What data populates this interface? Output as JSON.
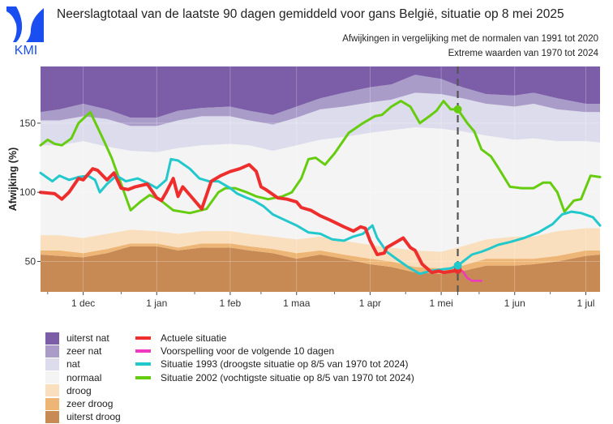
{
  "header": {
    "logo_text": "KMI",
    "title": "Neerslagtotaal van de laatste 90 dagen gemiddeld voor gans België, situatie op 8 mei 2025",
    "subtitle_1": "Afwijkingen in vergelijking met de normalen van 1991 tot 2020",
    "subtitle_2": "Extreme waarden van 1970 tot 2024"
  },
  "colors": {
    "uiterst_nat": "#7c5ea8",
    "zeer_nat": "#aa9cc9",
    "nat": "#dcdcec",
    "normaal": "#f4f4f4",
    "droog": "#f9dfbd",
    "zeer_droog": "#eeb676",
    "uiterst_droog": "#c88a55",
    "actueel": "#ee2d2d",
    "voorspelling": "#ee38c0",
    "s1993": "#22c8cc",
    "s2002": "#66cc0f",
    "today_line": "#555555",
    "logo": "#1a4ef0"
  },
  "chart_data": {
    "type": "area",
    "title": "Neerslagtotaal van de laatste 90 dagen gemiddeld voor gans België, situatie op 8 mei 2025",
    "xlabel": "",
    "ylabel": "Afwijking (%)",
    "ylim": [
      28,
      191
    ],
    "yticks": [
      50,
      100,
      150
    ],
    "x_unit": "days relative to 1 dec 2024",
    "xlim": [
      -18,
      218
    ],
    "xticks": [
      {
        "label": "1 dec",
        "day": 0
      },
      {
        "label": "1 jan",
        "day": 31
      },
      {
        "label": "1 feb",
        "day": 62
      },
      {
        "label": "1 maa",
        "day": 90
      },
      {
        "label": "1 apr",
        "day": 121
      },
      {
        "label": "1 mei",
        "day": 151
      },
      {
        "label": "1 jun",
        "day": 182
      },
      {
        "label": "1 jul",
        "day": 212
      }
    ],
    "today": {
      "label": "8 mei",
      "day": 158
    },
    "grid": true,
    "band_days": [
      -18,
      -10,
      0,
      10,
      20,
      31,
      40,
      50,
      62,
      70,
      80,
      90,
      100,
      110,
      121,
      130,
      140,
      151,
      160,
      170,
      182,
      190,
      200,
      212,
      218
    ],
    "bands": [
      {
        "name": "uiterst droog",
        "upper": [
          55,
          54,
          53,
          56,
          61,
          61,
          58,
          60,
          60,
          58,
          56,
          52,
          55,
          52,
          48,
          46,
          42,
          41,
          43,
          47,
          47,
          48,
          50,
          54,
          55
        ]
      },
      {
        "name": "zeer droog",
        "upper": [
          58,
          58,
          56,
          59,
          63,
          63,
          60,
          63,
          63,
          61,
          59,
          56,
          58,
          55,
          52,
          50,
          46,
          45,
          47,
          52,
          52,
          52,
          54,
          58,
          58
        ]
      },
      {
        "name": "droog",
        "upper": [
          69,
          69,
          67,
          70,
          73,
          72,
          70,
          72,
          72,
          70,
          68,
          66,
          68,
          65,
          62,
          60,
          58,
          57,
          61,
          66,
          68,
          68,
          72,
          74,
          74
        ]
      },
      {
        "name": "normaal",
        "upper": [
          134,
          134,
          137,
          133,
          130,
          129,
          132,
          134,
          135,
          134,
          130,
          134,
          138,
          140,
          143,
          145,
          147,
          146,
          144,
          141,
          138,
          139,
          137,
          137,
          136
        ]
      },
      {
        "name": "nat",
        "upper": [
          152,
          152,
          155,
          153,
          148,
          148,
          152,
          155,
          155,
          152,
          149,
          154,
          160,
          162,
          165,
          167,
          172,
          171,
          168,
          164,
          162,
          164,
          160,
          158,
          158
        ]
      },
      {
        "name": "zeer nat",
        "upper": [
          158,
          160,
          164,
          160,
          154,
          154,
          159,
          161,
          162,
          159,
          156,
          162,
          168,
          172,
          176,
          178,
          185,
          182,
          176,
          171,
          170,
          172,
          168,
          164,
          164
        ]
      },
      {
        "name": "uiterst nat",
        "upper": [
          191,
          191,
          191,
          191,
          191,
          191,
          191,
          191,
          191,
          191,
          191,
          191,
          191,
          191,
          191,
          191,
          191,
          191,
          191,
          191,
          191,
          191,
          191,
          191,
          191
        ]
      }
    ],
    "series": [
      {
        "name": "Actuele situatie",
        "x": [
          -18,
          -12,
          -9,
          -6,
          -2,
          0,
          4,
          6,
          10,
          13,
          16,
          19,
          22,
          27,
          31,
          33,
          35,
          38,
          40,
          42,
          46,
          50,
          54,
          58,
          62,
          66,
          70,
          73,
          75,
          77,
          82,
          86,
          90,
          92,
          96,
          100,
          104,
          110,
          114,
          117,
          119,
          121,
          124,
          127,
          128,
          132,
          135,
          138,
          140,
          143,
          145,
          147,
          150,
          152,
          156,
          158
        ],
        "values": [
          100,
          99,
          95,
          100,
          110,
          109,
          117,
          116,
          109,
          114,
          103,
          102,
          104,
          106,
          96,
          94,
          100,
          110,
          97,
          104,
          96,
          88,
          108,
          112,
          115,
          117,
          120,
          115,
          104,
          102,
          96,
          95,
          93,
          89,
          87,
          83,
          80,
          75,
          72,
          75,
          74,
          65,
          55,
          56,
          60,
          64,
          67,
          60,
          58,
          48,
          45,
          42,
          43,
          42,
          43,
          44
        ]
      },
      {
        "name": "Voorspelling voor de volgende 10 dagen",
        "x": [
          158,
          160,
          162,
          164,
          166,
          168
        ],
        "values": [
          44,
          43,
          38,
          36,
          36,
          36
        ]
      },
      {
        "name": "Situatie 1993 (droogste situatie op 8/5 van 1970 tot 2024)",
        "x": [
          -18,
          -13,
          -10,
          -6,
          -2,
          2,
          5,
          7,
          10,
          14,
          18,
          23,
          28,
          31,
          35,
          37,
          40,
          45,
          49,
          53,
          57,
          62,
          65,
          69,
          72,
          76,
          80,
          85,
          90,
          95,
          100,
          105,
          110,
          114,
          118,
          122,
          124,
          128,
          132,
          137,
          142,
          146,
          150,
          155,
          158,
          161,
          164,
          168,
          171,
          175,
          180,
          186,
          192,
          198,
          202,
          206,
          210,
          215,
          218
        ],
        "values": [
          114,
          108,
          112,
          109,
          111,
          112,
          109,
          100,
          106,
          112,
          108,
          110,
          106,
          103,
          109,
          124,
          123,
          117,
          110,
          108,
          108,
          103,
          99,
          96,
          94,
          90,
          84,
          80,
          76,
          71,
          70,
          66,
          65,
          68,
          70,
          76,
          67,
          57,
          52,
          46,
          41,
          43,
          44,
          45,
          47,
          51,
          55,
          57,
          59,
          62,
          64,
          67,
          71,
          77,
          84,
          86,
          85,
          82,
          76
        ]
      },
      {
        "name": "Situatie 2002 (vochtigste situatie op 8/5 van 1970 tot 2024)",
        "x": [
          -18,
          -15,
          -12,
          -9,
          -5,
          -2,
          3,
          8,
          12,
          16,
          20,
          24,
          28,
          32,
          38,
          45,
          52,
          57,
          60,
          64,
          69,
          73,
          78,
          84,
          88,
          92,
          95,
          98,
          102,
          106,
          112,
          118,
          123,
          126,
          130,
          134,
          138,
          142,
          146,
          149,
          152,
          155,
          158,
          162,
          165,
          168,
          172,
          175,
          180,
          185,
          190,
          194,
          197,
          200,
          203,
          207,
          210,
          214,
          218
        ],
        "values": [
          134,
          138,
          135,
          134,
          139,
          150,
          158,
          140,
          125,
          106,
          87,
          93,
          98,
          95,
          87,
          85,
          88,
          100,
          103,
          103,
          100,
          97,
          95,
          97,
          100,
          110,
          124,
          125,
          120,
          128,
          143,
          150,
          155,
          156,
          162,
          166,
          162,
          150,
          155,
          159,
          166,
          160,
          160,
          150,
          144,
          131,
          126,
          118,
          104,
          103,
          103,
          107,
          107,
          100,
          86,
          94,
          95,
          112,
          111
        ]
      }
    ],
    "markers": [
      {
        "series": "Actuele situatie",
        "day": 158,
        "value": 44
      },
      {
        "series": "Situatie 1993 (droogste situatie op 8/5 van 1970 tot 2024)",
        "day": 158,
        "value": 47
      },
      {
        "series": "Situatie 2002 (vochtigste situatie op 8/5 van 1970 tot 2024)",
        "day": 158,
        "value": 160
      }
    ],
    "legend_placement": "bottom-left"
  },
  "legend": {
    "categories": [
      {
        "label": "uiterst nat",
        "key": "uiterst_nat"
      },
      {
        "label": "zeer nat",
        "key": "zeer_nat"
      },
      {
        "label": "nat",
        "key": "nat"
      },
      {
        "label": "normaal",
        "key": "normaal"
      },
      {
        "label": "droog",
        "key": "droog"
      },
      {
        "label": "zeer droog",
        "key": "zeer_droog"
      },
      {
        "label": "uiterst droog",
        "key": "uiterst_droog"
      }
    ],
    "lines": [
      {
        "label": "Actuele situatie",
        "key": "actueel"
      },
      {
        "label": "Voorspelling voor de volgende 10 dagen",
        "key": "voorspelling"
      },
      {
        "label": "Situatie 1993 (droogste situatie op 8/5 van 1970 tot 2024)",
        "key": "s1993"
      },
      {
        "label": "Situatie 2002 (vochtigste situatie op 8/5 van 1970 tot 2024)",
        "key": "s2002"
      }
    ]
  }
}
